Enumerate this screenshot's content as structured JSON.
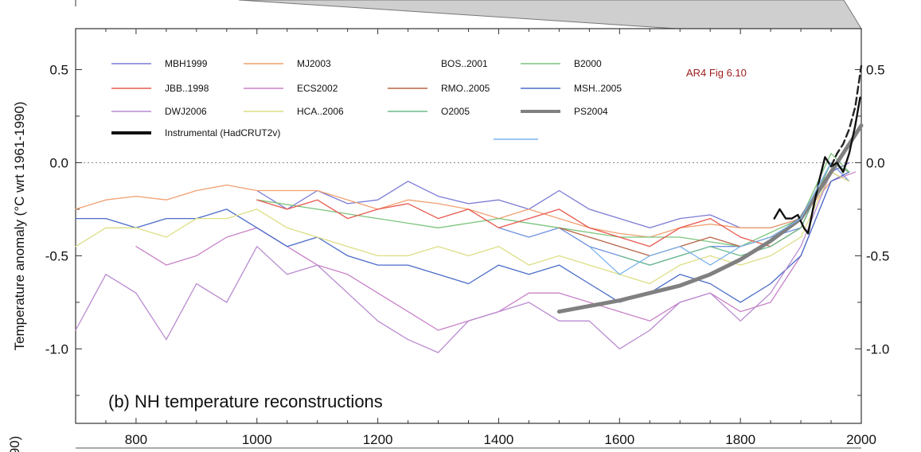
{
  "chart_data": {
    "type": "line",
    "panel_title": "(b) NH temperature reconstructions",
    "ylabel": "Temperature anomaly (°C wrt 1961-1990)",
    "ylabel_fragment_below": "90)",
    "annotation": "AR4 Fig 6.10",
    "annotation_color": "#9b1b1b",
    "xlim": [
      700,
      2000
    ],
    "ylim": [
      -1.4,
      0.72
    ],
    "x_ticks": [
      800,
      1000,
      1200,
      1400,
      1600,
      1800,
      2000
    ],
    "x_tick_labels": [
      "800",
      "1000",
      "1200",
      "1400",
      "1600",
      "1800",
      "2000"
    ],
    "y_ticks": [
      0.5,
      0.0,
      -0.5,
      -1.0
    ],
    "y_tick_labels": [
      "0.5",
      "0.0",
      "-0.5",
      "-1.0"
    ],
    "zero_line": "dotted",
    "legend_position": "top-left",
    "series": [
      {
        "name": "MBH1999",
        "color": "#7a7ad6",
        "x": [
          1000,
          1050,
          1100,
          1150,
          1200,
          1250,
          1300,
          1350,
          1400,
          1450,
          1500,
          1550,
          1600,
          1650,
          1700,
          1750,
          1800,
          1850,
          1900,
          1950,
          1980
        ],
        "y": [
          -0.15,
          -0.25,
          -0.15,
          -0.22,
          -0.2,
          -0.1,
          -0.18,
          -0.22,
          -0.2,
          -0.25,
          -0.15,
          -0.25,
          -0.3,
          -0.35,
          -0.3,
          -0.28,
          -0.35,
          -0.35,
          -0.3,
          -0.05,
          0.0
        ]
      },
      {
        "name": "MJ2003",
        "color": "#f0a070",
        "x": [
          700,
          750,
          800,
          850,
          900,
          950,
          1000,
          1050,
          1100,
          1150,
          1200,
          1250,
          1300,
          1350,
          1400,
          1450,
          1500,
          1550,
          1600,
          1650,
          1700,
          1750,
          1800,
          1850,
          1900,
          1950,
          1980
        ],
        "y": [
          -0.25,
          -0.2,
          -0.18,
          -0.2,
          -0.15,
          -0.12,
          -0.15,
          -0.15,
          -0.15,
          -0.2,
          -0.25,
          -0.2,
          -0.22,
          -0.25,
          -0.3,
          -0.25,
          -0.3,
          -0.35,
          -0.38,
          -0.4,
          -0.35,
          -0.33,
          -0.35,
          -0.35,
          -0.3,
          -0.1,
          -0.05
        ]
      },
      {
        "name": "BOS..2001",
        "color": "#6e90e0",
        "x": [
          1400,
          1450,
          1500,
          1550,
          1600,
          1650,
          1700,
          1750,
          1800,
          1850,
          1900,
          1950,
          1980
        ],
        "y": [
          -0.35,
          -0.4,
          -0.35,
          -0.45,
          -0.5,
          -0.55,
          -0.5,
          -0.45,
          -0.45,
          -0.4,
          -0.35,
          0.0,
          -0.1
        ]
      },
      {
        "name": "B2000",
        "color": "#7cc47c",
        "x": [
          1000,
          1100,
          1200,
          1300,
          1400,
          1500,
          1600,
          1700,
          1800,
          1900,
          1950,
          1980
        ],
        "y": [
          -0.2,
          -0.25,
          -0.3,
          -0.35,
          -0.3,
          -0.35,
          -0.4,
          -0.4,
          -0.45,
          -0.3,
          0.05,
          -0.05
        ]
      },
      {
        "name": "JBB..1998",
        "color": "#e8584f",
        "x": [
          1000,
          1050,
          1100,
          1150,
          1200,
          1250,
          1300,
          1350,
          1400,
          1450,
          1500,
          1550,
          1600,
          1650,
          1700,
          1750,
          1800,
          1850,
          1900,
          1950,
          1980
        ],
        "y": [
          -0.2,
          -0.25,
          -0.2,
          -0.3,
          -0.25,
          -0.22,
          -0.3,
          -0.25,
          -0.35,
          -0.3,
          -0.25,
          -0.35,
          -0.4,
          -0.45,
          -0.35,
          -0.3,
          -0.4,
          -0.45,
          -0.35,
          0.0,
          -0.05
        ]
      },
      {
        "name": "ECS2002",
        "color": "#c882c8",
        "x": [
          800,
          850,
          900,
          950,
          1000,
          1050,
          1100,
          1150,
          1200,
          1250,
          1300,
          1350,
          1400,
          1450,
          1500,
          1550,
          1600,
          1650,
          1700,
          1750,
          1800,
          1850,
          1900,
          1950,
          1990
        ],
        "y": [
          -0.45,
          -0.55,
          -0.5,
          -0.4,
          -0.35,
          -0.45,
          -0.55,
          -0.6,
          -0.7,
          -0.8,
          -0.9,
          -0.85,
          -0.8,
          -0.7,
          -0.7,
          -0.75,
          -0.8,
          -0.85,
          -0.75,
          -0.7,
          -0.8,
          -0.75,
          -0.5,
          -0.1,
          -0.05
        ]
      },
      {
        "name": "RMO..2005",
        "color": "#b86446",
        "x": [
          1500,
          1550,
          1600,
          1650,
          1700,
          1750,
          1800,
          1850,
          1900,
          1950,
          1980
        ],
        "y": [
          -0.35,
          -0.4,
          -0.45,
          -0.5,
          -0.45,
          -0.4,
          -0.45,
          -0.4,
          -0.3,
          0.0,
          -0.05
        ]
      },
      {
        "name": "MSH..2005",
        "color": "#4a6cc8",
        "x": [
          700,
          750,
          800,
          850,
          900,
          950,
          1000,
          1050,
          1100,
          1150,
          1200,
          1250,
          1300,
          1350,
          1400,
          1450,
          1500,
          1550,
          1600,
          1650,
          1700,
          1750,
          1800,
          1850,
          1900,
          1950,
          1980
        ],
        "y": [
          -0.3,
          -0.3,
          -0.35,
          -0.3,
          -0.3,
          -0.25,
          -0.35,
          -0.45,
          -0.4,
          -0.5,
          -0.55,
          -0.55,
          -0.6,
          -0.65,
          -0.55,
          -0.6,
          -0.55,
          -0.65,
          -0.75,
          -0.7,
          -0.6,
          -0.65,
          -0.75,
          -0.65,
          -0.5,
          -0.1,
          -0.05
        ]
      },
      {
        "name": "DWJ2006",
        "color": "#b98ad0",
        "x": [
          700,
          750,
          800,
          850,
          900,
          950,
          1000,
          1050,
          1100,
          1150,
          1200,
          1250,
          1300,
          1350,
          1400,
          1450,
          1500,
          1550,
          1600,
          1650,
          1700,
          1750,
          1800,
          1850,
          1900,
          1950,
          1980
        ],
        "y": [
          -0.9,
          -0.6,
          -0.7,
          -0.95,
          -0.65,
          -0.75,
          -0.45,
          -0.6,
          -0.55,
          -0.7,
          -0.85,
          -0.95,
          -1.02,
          -0.85,
          -0.8,
          -0.75,
          -0.85,
          -0.85,
          -1.0,
          -0.9,
          -0.75,
          -0.7,
          -0.85,
          -0.7,
          -0.45,
          -0.05,
          -0.1
        ]
      },
      {
        "name": "HCA..2006",
        "color": "#dede86",
        "x": [
          700,
          750,
          800,
          850,
          900,
          950,
          1000,
          1050,
          1100,
          1150,
          1200,
          1250,
          1300,
          1350,
          1400,
          1450,
          1500,
          1550,
          1600,
          1650,
          1700,
          1750,
          1800,
          1850,
          1900,
          1950,
          1980
        ],
        "y": [
          -0.45,
          -0.35,
          -0.35,
          -0.4,
          -0.3,
          -0.3,
          -0.25,
          -0.35,
          -0.4,
          -0.45,
          -0.5,
          -0.5,
          -0.45,
          -0.5,
          -0.45,
          -0.55,
          -0.5,
          -0.55,
          -0.6,
          -0.65,
          -0.55,
          -0.5,
          -0.55,
          -0.5,
          -0.4,
          -0.05,
          -0.1
        ]
      },
      {
        "name": "O2005",
        "color": "#6cbc8c",
        "x": [
          1600,
          1650,
          1700,
          1750,
          1800,
          1850,
          1900,
          1950,
          1980
        ],
        "y": [
          -0.5,
          -0.55,
          -0.5,
          -0.45,
          -0.5,
          -0.45,
          -0.35,
          0.0,
          -0.05
        ]
      },
      {
        "name": "PS2004",
        "color": "#808080",
        "width": 5,
        "x": [
          1500,
          1550,
          1600,
          1650,
          1700,
          1750,
          1800,
          1850,
          1900,
          1950,
          2000
        ],
        "y": [
          -0.8,
          -0.77,
          -0.74,
          -0.7,
          -0.66,
          -0.6,
          -0.52,
          -0.42,
          -0.3,
          -0.05,
          0.2
        ]
      },
      {
        "name": "Instrumental (HadCRUT2v)",
        "color": "#111111",
        "width": 2.4,
        "x": [
          1856,
          1865,
          1875,
          1885,
          1895,
          1905,
          1912,
          1920,
          1930,
          1940,
          1950,
          1960,
          1970,
          1980,
          1990,
          1998
        ],
        "y": [
          -0.3,
          -0.25,
          -0.3,
          -0.3,
          -0.28,
          -0.35,
          -0.38,
          -0.25,
          -0.1,
          0.03,
          -0.02,
          0.0,
          -0.05,
          0.05,
          0.2,
          0.35
        ]
      },
      {
        "name": "",
        "color": "#222222",
        "width": 2.4,
        "dash": "9,5",
        "x": [
          1950,
          1960,
          1970,
          1980,
          1990,
          2000
        ],
        "y": [
          -0.02,
          0.05,
          0.1,
          0.18,
          0.3,
          0.52
        ]
      },
      {
        "name": "",
        "color": "#7ab4ec",
        "x": [
          1550,
          1600,
          1650,
          1700,
          1750,
          1800,
          1850,
          1900,
          1950
        ],
        "y": [
          -0.45,
          -0.6,
          -0.5,
          -0.45,
          -0.55,
          -0.45,
          -0.4,
          -0.3,
          0.0
        ]
      }
    ]
  },
  "legend": {
    "row1": [
      "MBH1999",
      "MJ2003",
      "BOS..2001",
      "B2000"
    ],
    "row2": [
      "JBB..1998",
      "ECS2002",
      "RMO..2005",
      "MSH..2005"
    ],
    "row3": [
      "DWJ2006",
      "HCA..2006",
      "O2005",
      "PS2004"
    ],
    "row4": [
      "Instrumental (HadCRUT2v)"
    ],
    "row1_colors": [
      "#7a7ad6",
      "#f0a070",
      "",
      "#7cc47c"
    ],
    "row2_colors": [
      "#e8584f",
      "#c882c8",
      "#b86446",
      "#4a6cc8"
    ],
    "row3_colors": [
      "#b98ad0",
      "#dede86",
      "#6cbc8c",
      "#808080"
    ],
    "row4_colors": [
      "#111111"
    ]
  }
}
